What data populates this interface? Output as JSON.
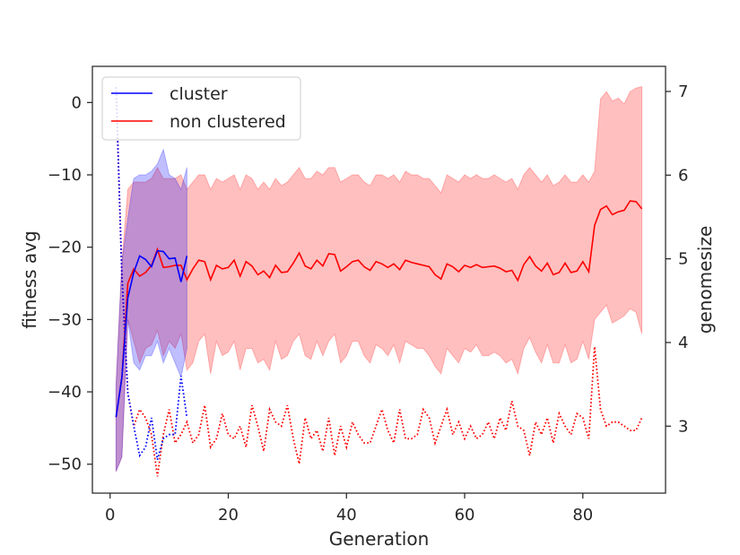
{
  "chart_data": {
    "type": "line",
    "xlabel": "Generation",
    "ylabel": "fitness avg",
    "y2label": "genomesize",
    "xlim": [
      -3,
      94
    ],
    "ylim": [
      -54,
      5
    ],
    "y2lim": [
      2.2,
      7.3
    ],
    "xticks": [
      0,
      20,
      40,
      60,
      80
    ],
    "yticks": [
      0,
      -10,
      -20,
      -30,
      -40,
      -50
    ],
    "y2ticks": [
      3,
      4,
      5,
      6,
      7
    ],
    "grid": false,
    "legend_position": "top-left",
    "legend": [
      {
        "label": "cluster",
        "color": "#0000ff"
      },
      {
        "label": "non clustered",
        "color": "#ff0000"
      }
    ],
    "series": [
      {
        "name": "cluster",
        "color": "#0000ff",
        "axis": "left",
        "x": [
          1,
          2,
          3,
          4,
          5,
          6,
          7,
          8,
          9,
          10,
          11,
          12,
          13
        ],
        "y": [
          -43.5,
          -38,
          -27,
          -23.5,
          -21.2,
          -21.7,
          -22.7,
          -20.5,
          -20.6,
          -21.6,
          -21.5,
          -24.8,
          -21.2
        ],
        "band_lower": [
          -51,
          -49,
          -30,
          -36,
          -37,
          -35,
          -35,
          -33,
          -36,
          -34,
          -36,
          -38,
          -34
        ],
        "band_upper": [
          -39,
          -22,
          -16,
          -10.5,
          -10,
          -10,
          -9.5,
          -8.5,
          -6.5,
          -10,
          -10.5,
          -12,
          -9
        ]
      },
      {
        "name": "non clustered",
        "color": "#ff0000",
        "axis": "left",
        "x": [
          1,
          2,
          3,
          4,
          5,
          6,
          7,
          8,
          9,
          10,
          11,
          12,
          13,
          14,
          15,
          16,
          17,
          18,
          19,
          20,
          21,
          22,
          23,
          24,
          25,
          26,
          27,
          28,
          29,
          30,
          31,
          32,
          33,
          34,
          35,
          36,
          37,
          38,
          39,
          40,
          41,
          42,
          43,
          44,
          45,
          46,
          47,
          48,
          49,
          50,
          51,
          52,
          53,
          54,
          55,
          56,
          57,
          58,
          59,
          60,
          61,
          62,
          63,
          64,
          65,
          66,
          67,
          68,
          69,
          70,
          71,
          72,
          73,
          74,
          75,
          76,
          77,
          78,
          79,
          80,
          81,
          82,
          83,
          84,
          85,
          86,
          87,
          88,
          89,
          90
        ],
        "y": [
          -43.5,
          -38,
          -25,
          -23,
          -24,
          -23.5,
          -22.5,
          -20.3,
          -22.8,
          -22.7,
          -22.5,
          -22.5,
          -24.5,
          -23,
          -21.8,
          -22,
          -24.5,
          -22.5,
          -23,
          -22.8,
          -21.8,
          -24,
          -22,
          -22.6,
          -23.8,
          -23.3,
          -24.2,
          -22.5,
          -23.5,
          -23.4,
          -22.2,
          -20.8,
          -22.6,
          -23,
          -21.8,
          -22.6,
          -20.9,
          -21,
          -23.3,
          -22.7,
          -22,
          -21.8,
          -22.7,
          -23.2,
          -22,
          -22.3,
          -22.8,
          -22.3,
          -23.1,
          -21.8,
          -22.1,
          -22.3,
          -22.5,
          -22.7,
          -23.8,
          -24.4,
          -22.3,
          -22.7,
          -23.4,
          -22.5,
          -22.8,
          -22.4,
          -22.8,
          -22.7,
          -22.6,
          -22.9,
          -23.4,
          -23.2,
          -24.6,
          -22.4,
          -21.3,
          -22.6,
          -23.3,
          -22.2,
          -23.8,
          -23.5,
          -22.2,
          -23.5,
          -23.3,
          -22,
          -23.4,
          -17,
          -14.8,
          -14.3,
          -15.5,
          -15.1,
          -14.9,
          -13.6,
          -13.7,
          -14.7
        ],
        "band_lower": [
          -51,
          -49,
          -30,
          -33,
          -36,
          -34,
          -33.5,
          -31.5,
          -35,
          -33,
          -34,
          -32,
          -37,
          -36,
          -33,
          -32,
          -37.5,
          -33,
          -35,
          -34.5,
          -33,
          -37,
          -34,
          -34,
          -36,
          -35.5,
          -37,
          -33,
          -35.5,
          -35,
          -33,
          -32,
          -35,
          -35.5,
          -33,
          -35,
          -33,
          -32,
          -36,
          -35,
          -33,
          -33,
          -35,
          -36,
          -33.5,
          -34,
          -35,
          -33.5,
          -36,
          -33,
          -33.5,
          -34,
          -34,
          -35,
          -36.5,
          -37.5,
          -34,
          -35,
          -36,
          -34,
          -34.5,
          -33.5,
          -35,
          -35,
          -34.5,
          -35,
          -36,
          -35.5,
          -37.5,
          -34,
          -32.5,
          -34.5,
          -36,
          -33.5,
          -36,
          -36,
          -33.5,
          -36,
          -35.5,
          -33,
          -35.5,
          -30,
          -29,
          -28,
          -30.5,
          -30,
          -29.5,
          -28.5,
          -29,
          -32
        ],
        "band_upper": [
          -39,
          -22,
          -12,
          -11,
          -11,
          -11,
          -10.5,
          -9,
          -10.5,
          -10.5,
          -10.5,
          -10,
          -12,
          -11,
          -10,
          -10,
          -12,
          -10.5,
          -11,
          -10.5,
          -10,
          -12,
          -10,
          -10.5,
          -12,
          -11,
          -12,
          -10.5,
          -11.5,
          -11,
          -10,
          -9,
          -10.5,
          -10.5,
          -9.5,
          -10,
          -9,
          -9,
          -11,
          -10.5,
          -10,
          -10,
          -11,
          -11.5,
          -10,
          -10,
          -10.5,
          -10,
          -11,
          -9.5,
          -10,
          -10,
          -10.5,
          -10.5,
          -11.5,
          -12.5,
          -10,
          -10.5,
          -11,
          -10,
          -10.5,
          -10,
          -10.5,
          -10.5,
          -10,
          -10.5,
          -11,
          -10.5,
          -12,
          -10,
          -9,
          -10,
          -11,
          -10,
          -11.5,
          -11,
          -10,
          -11,
          -11,
          -10,
          -11,
          -9.5,
          0.5,
          1.5,
          0.2,
          0.6,
          -0.2,
          1.5,
          2.0,
          2.2
        ]
      },
      {
        "name": "cluster genomesize",
        "color": "#0000ff",
        "axis": "right",
        "style": "dotted",
        "x": [
          1,
          2,
          3,
          4,
          5,
          6,
          7,
          8,
          9,
          10,
          11,
          12,
          13
        ],
        "y": [
          7.05,
          4.8,
          3.4,
          3.0,
          2.65,
          2.75,
          3.1,
          2.6,
          2.85,
          2.9,
          2.9,
          3.6,
          3.1
        ]
      },
      {
        "name": "non clustered genomesize",
        "color": "#ff0000",
        "axis": "right",
        "style": "dotted",
        "x": [
          1,
          2,
          3,
          4,
          5,
          6,
          7,
          8,
          9,
          10,
          11,
          12,
          13,
          14,
          15,
          16,
          17,
          18,
          19,
          20,
          21,
          22,
          23,
          24,
          25,
          26,
          27,
          28,
          29,
          30,
          31,
          32,
          33,
          34,
          35,
          36,
          37,
          38,
          39,
          40,
          41,
          42,
          43,
          44,
          45,
          46,
          47,
          48,
          49,
          50,
          51,
          52,
          53,
          54,
          55,
          56,
          57,
          58,
          59,
          60,
          61,
          62,
          63,
          64,
          65,
          66,
          67,
          68,
          69,
          70,
          71,
          72,
          73,
          74,
          75,
          76,
          77,
          78,
          79,
          80,
          81,
          82,
          83,
          84,
          85,
          86,
          87,
          88,
          89,
          90
        ],
        "y": [
          7.05,
          4.8,
          3.4,
          3.0,
          3.2,
          3.1,
          2.9,
          2.4,
          2.9,
          3.2,
          2.8,
          2.9,
          3.05,
          2.8,
          2.9,
          3.25,
          2.75,
          2.85,
          3.15,
          2.9,
          2.85,
          3.0,
          2.75,
          3.25,
          3.0,
          2.7,
          3.2,
          3.05,
          3.0,
          3.25,
          2.85,
          2.55,
          3.1,
          2.85,
          2.95,
          2.7,
          3.1,
          2.65,
          3.0,
          2.75,
          3.05,
          2.9,
          2.8,
          2.8,
          3.0,
          3.2,
          2.95,
          2.8,
          3.2,
          2.85,
          2.85,
          2.9,
          3.2,
          3.1,
          2.8,
          3.0,
          3.2,
          2.9,
          3.05,
          2.85,
          3.0,
          2.85,
          2.9,
          3.05,
          2.85,
          3.1,
          2.95,
          3.3,
          3.0,
          2.95,
          2.65,
          3.05,
          2.9,
          3.1,
          2.8,
          3.15,
          3.0,
          2.9,
          3.15,
          3.1,
          2.85,
          3.95,
          3.2,
          3.0,
          3.05,
          3.05,
          3.0,
          2.95,
          2.95,
          3.1
        ]
      }
    ]
  }
}
